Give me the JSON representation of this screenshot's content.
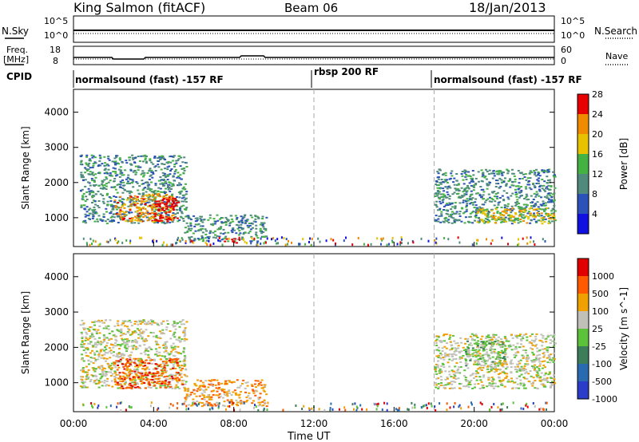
{
  "header": {
    "station": "King Salmon (fitACF)",
    "beam": "Beam 06",
    "date": "18/Jan/2013"
  },
  "top_panel": {
    "left_label": "N.Sky",
    "left_ticks": [
      "10^5",
      "10^0"
    ],
    "right_ticks": [
      "10^5",
      "10^0"
    ],
    "right_label": "N.Search"
  },
  "freq_panel": {
    "left_label_1": "Freq.",
    "left_label_2": "[MHz]",
    "left_ticks": [
      "18",
      "8"
    ],
    "right_ticks": [
      "60",
      "0"
    ],
    "right_label": "Nave"
  },
  "cpid": {
    "label": "CPID",
    "segments": [
      "normalsound (fast) -157 RF",
      "rbsp 200 RF",
      "normalsound (fast) -157 RF"
    ]
  },
  "x_axis": {
    "label": "Time UT",
    "ticks": [
      "00:00",
      "04:00",
      "08:00",
      "12:00",
      "16:00",
      "20:00",
      "00:00"
    ]
  },
  "chart_data": [
    {
      "type": "heatmap",
      "title": "Power",
      "xlabel": "Time UT",
      "ylabel": "Slant Range [km]",
      "x_ticks": [
        "00:00",
        "04:00",
        "08:00",
        "12:00",
        "16:00",
        "20:00",
        "00:00"
      ],
      "y_ticks": [
        1000,
        2000,
        3000,
        4000
      ],
      "ylim": [
        180,
        4650
      ],
      "xlim_hours": [
        0,
        24
      ],
      "colorbar": {
        "label": "Power [dB]",
        "ticks": [
          4,
          8,
          12,
          16,
          20,
          24,
          28
        ],
        "colors": [
          "#1010e0",
          "#2a52b8",
          "#4f8a7c",
          "#43b243",
          "#e6c200",
          "#f08a00",
          "#e60000"
        ]
      },
      "regions": [
        {
          "t0": 0.3,
          "t1": 5.6,
          "r0": 850,
          "r1": 2800,
          "level": 2
        },
        {
          "t0": 2.0,
          "t1": 5.0,
          "r0": 900,
          "r1": 1700,
          "level": 5
        },
        {
          "t0": 4.0,
          "t1": 5.2,
          "r0": 900,
          "r1": 1600,
          "level": 7
        },
        {
          "t0": 5.5,
          "t1": 9.6,
          "r0": 350,
          "r1": 1100,
          "level": 2
        },
        {
          "t0": 7.4,
          "t1": 8.2,
          "r0": 300,
          "r1": 420,
          "level": 7
        },
        {
          "t0": 18.0,
          "t1": 24.0,
          "r0": 850,
          "r1": 2400,
          "level": 2
        },
        {
          "t0": 20.0,
          "t1": 24.0,
          "r0": 850,
          "r1": 1300,
          "level": 4
        }
      ]
    },
    {
      "type": "heatmap",
      "title": "Velocity",
      "xlabel": "Time UT",
      "ylabel": "Slant Range [km]",
      "x_ticks": [
        "00:00",
        "04:00",
        "08:00",
        "12:00",
        "16:00",
        "20:00",
        "00:00"
      ],
      "y_ticks": [
        1000,
        2000,
        3000,
        4000
      ],
      "ylim": [
        180,
        4650
      ],
      "xlim_hours": [
        0,
        24
      ],
      "colorbar": {
        "label": "Velocity [m s^-1]",
        "ticks": [
          1000,
          500,
          100,
          25,
          -25,
          -100,
          -500,
          -1000
        ],
        "colors": [
          "#2a3cc8",
          "#2a6ab0",
          "#3c7e5a",
          "#5cc23a",
          "#c0c0b8",
          "#f0a000",
          "#ff5a00",
          "#e00000"
        ]
      },
      "regions": [
        {
          "t0": 0.3,
          "t1": 5.6,
          "r0": 850,
          "r1": 2800,
          "level": 4
        },
        {
          "t0": 2.0,
          "t1": 5.4,
          "r0": 850,
          "r1": 1700,
          "level": 6
        },
        {
          "t0": 5.5,
          "t1": 9.6,
          "r0": 350,
          "r1": 1100,
          "level": 5
        },
        {
          "t0": 18.0,
          "t1": 24.0,
          "r0": 850,
          "r1": 2400,
          "level": 4
        },
        {
          "t0": 19.5,
          "t1": 21.5,
          "r0": 1500,
          "r1": 2200,
          "level": 3
        }
      ]
    }
  ]
}
